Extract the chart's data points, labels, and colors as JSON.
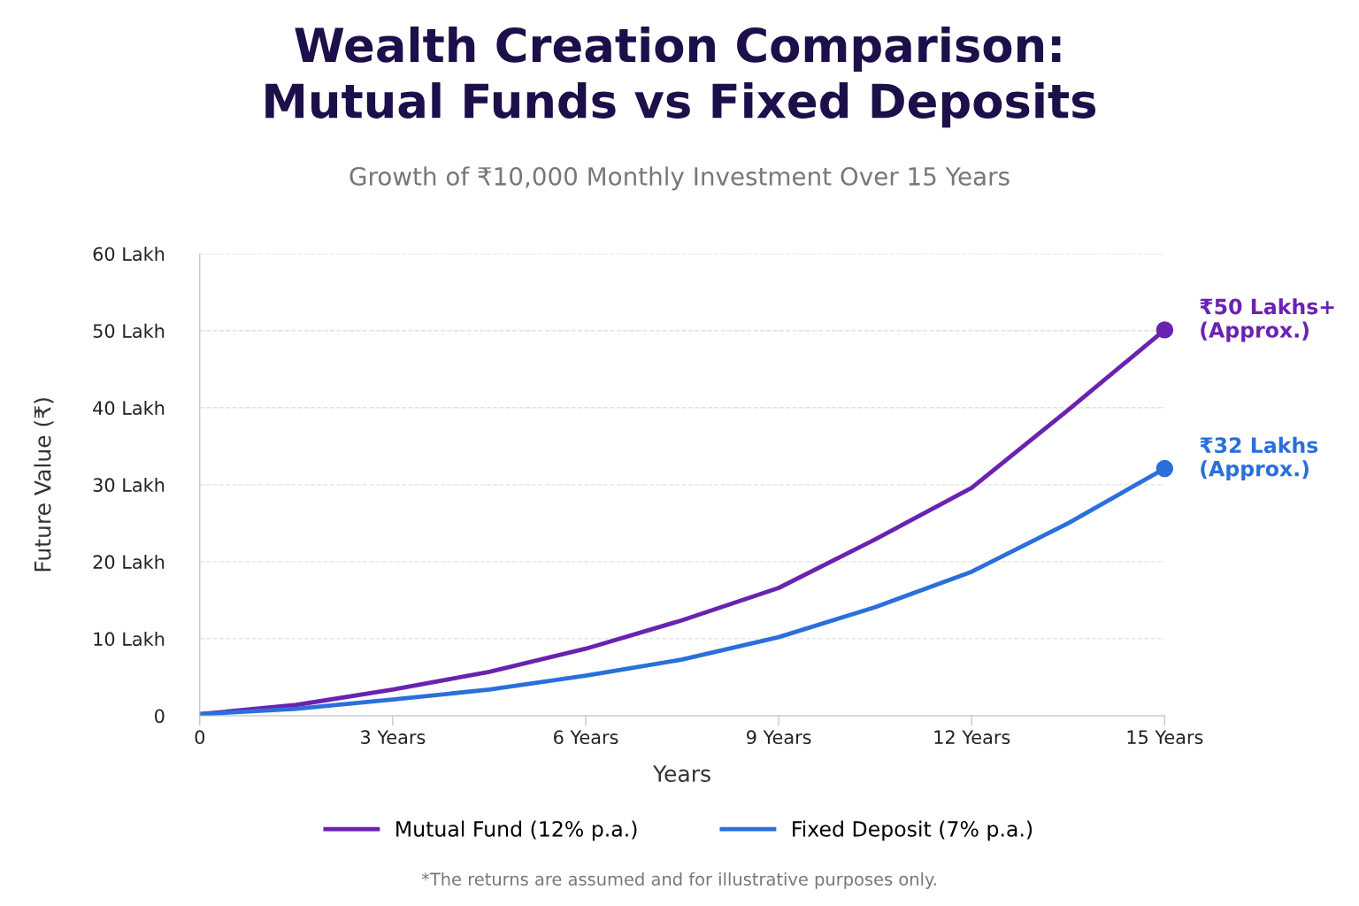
{
  "chart_data": {
    "type": "line",
    "title": "Wealth Creation Comparison:\nMutual Funds vs Fixed Deposits",
    "subtitle": "Growth of ₹10,000 Monthly Investment Over 15 Years",
    "xlabel": "Years",
    "ylabel": "Future Value (₹)",
    "x": [
      0,
      1.5,
      3,
      4.5,
      6,
      7.5,
      9,
      10.5,
      12,
      13.5,
      15
    ],
    "series": [
      {
        "name": "Mutual Fund (12% p.a.)",
        "color": "#6a22b0",
        "values": [
          0.2,
          1.4,
          3.4,
          5.7,
          8.7,
          12.4,
          16.6,
          22.9,
          29.6,
          39.7,
          50.1
        ]
      },
      {
        "name": "Fixed Deposit (7% p.a.)",
        "color": "#2a6fdb",
        "values": [
          0.2,
          0.9,
          2.1,
          3.4,
          5.2,
          7.3,
          10.2,
          14.1,
          18.7,
          25.0,
          32.1
        ]
      }
    ],
    "xlim": [
      0,
      15
    ],
    "xticks": [
      0,
      {
        "value": 3,
        "label": "3 Years"
      },
      {
        "value": 6,
        "label": "6 Years"
      },
      {
        "value": 9,
        "label": "9 Years"
      },
      {
        "value": 12,
        "label": "12 Years"
      },
      {
        "value": 15,
        "label": "15 Years"
      }
    ],
    "ylim": [
      0,
      60
    ],
    "yticks": [
      0,
      {
        "value": 10,
        "label": "10 Lakh"
      },
      {
        "value": 20,
        "label": "20 Lakh"
      },
      {
        "value": 30,
        "label": "30 Lakh"
      },
      {
        "value": 40,
        "label": "40 Lakh"
      },
      {
        "value": 50,
        "label": "50 Lakh"
      },
      {
        "value": 60,
        "label": "60 Lakh"
      }
    ],
    "grid": "y",
    "legend": "bottom",
    "line_style": "solid",
    "annotations": [
      {
        "text": "₹50 Lakhs+\n(Approx.)",
        "x": 15,
        "y": 50.1
      },
      {
        "text": "₹32 Lakhs\n(Approx.)",
        "x": 15,
        "y": 32.1
      },
      "*The returns are assumed and for illustrative purposes only."
    ]
  }
}
